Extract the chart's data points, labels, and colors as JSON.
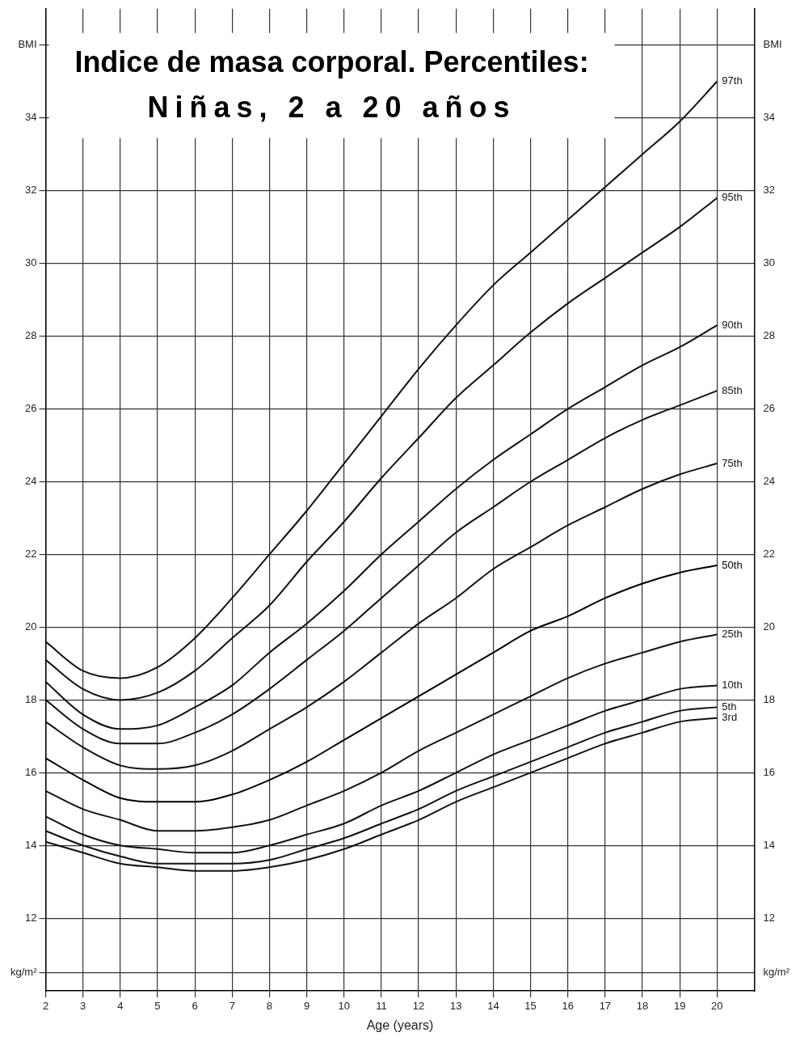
{
  "chart_data": {
    "type": "line",
    "title": "Indice de masa corporal. Percentiles:",
    "subtitle": "Niñas, 2 a 20 años",
    "xlabel": "Age (years)",
    "x": [
      2,
      3,
      4,
      5,
      6,
      7,
      8,
      9,
      10,
      11,
      12,
      13,
      14,
      15,
      16,
      17,
      18,
      19,
      20
    ],
    "series": [
      {
        "name": "97th",
        "color": "#111111",
        "values": [
          19.6,
          18.8,
          18.6,
          18.9,
          19.7,
          20.8,
          22.0,
          23.2,
          24.5,
          25.8,
          27.1,
          28.3,
          29.4,
          30.3,
          31.2,
          32.1,
          33.0,
          33.9,
          35.0
        ]
      },
      {
        "name": "95th",
        "color": "#111111",
        "values": [
          19.1,
          18.3,
          18.0,
          18.2,
          18.8,
          19.7,
          20.6,
          21.8,
          22.9,
          24.1,
          25.2,
          26.3,
          27.2,
          28.1,
          28.9,
          29.6,
          30.3,
          31.0,
          31.8
        ]
      },
      {
        "name": "90th",
        "color": "#111111",
        "values": [
          18.5,
          17.6,
          17.2,
          17.3,
          17.8,
          18.4,
          19.3,
          20.1,
          21.0,
          22.0,
          22.9,
          23.8,
          24.6,
          25.3,
          26.0,
          26.6,
          27.2,
          27.7,
          28.3
        ]
      },
      {
        "name": "85th",
        "color": "#111111",
        "values": [
          18.0,
          17.2,
          16.8,
          16.8,
          17.1,
          17.6,
          18.3,
          19.1,
          19.9,
          20.8,
          21.7,
          22.6,
          23.3,
          24.0,
          24.6,
          25.2,
          25.7,
          26.1,
          26.5
        ]
      },
      {
        "name": "75th",
        "color": "#111111",
        "values": [
          17.4,
          16.7,
          16.2,
          16.1,
          16.2,
          16.6,
          17.2,
          17.8,
          18.5,
          19.3,
          20.1,
          20.8,
          21.6,
          22.2,
          22.8,
          23.3,
          23.8,
          24.2,
          24.5
        ]
      },
      {
        "name": "50th",
        "color": "#000000",
        "values": [
          16.4,
          15.8,
          15.3,
          15.2,
          15.2,
          15.4,
          15.8,
          16.3,
          16.9,
          17.5,
          18.1,
          18.7,
          19.3,
          19.9,
          20.3,
          20.8,
          21.2,
          21.5,
          21.7
        ]
      },
      {
        "name": "25th",
        "color": "#111111",
        "values": [
          15.5,
          15.0,
          14.7,
          14.4,
          14.4,
          14.5,
          14.7,
          15.1,
          15.5,
          16.0,
          16.6,
          17.1,
          17.6,
          18.1,
          18.6,
          19.0,
          19.3,
          19.6,
          19.8
        ]
      },
      {
        "name": "10th",
        "color": "#111111",
        "values": [
          14.8,
          14.3,
          14.0,
          13.9,
          13.8,
          13.8,
          14.0,
          14.3,
          14.6,
          15.1,
          15.5,
          16.0,
          16.5,
          16.9,
          17.3,
          17.7,
          18.0,
          18.3,
          18.4
        ]
      },
      {
        "name": "5th",
        "color": "#111111",
        "values": [
          14.4,
          14.0,
          13.7,
          13.5,
          13.5,
          13.5,
          13.6,
          13.9,
          14.2,
          14.6,
          15.0,
          15.5,
          15.9,
          16.3,
          16.7,
          17.1,
          17.4,
          17.7,
          17.8
        ]
      },
      {
        "name": "3rd",
        "color": "#111111",
        "values": [
          14.1,
          13.8,
          13.5,
          13.4,
          13.3,
          13.3,
          13.4,
          13.6,
          13.9,
          14.3,
          14.7,
          15.2,
          15.6,
          16.0,
          16.4,
          16.8,
          17.1,
          17.4,
          17.5
        ]
      }
    ],
    "xlim": [
      2,
      21
    ],
    "xticks": [
      2,
      3,
      4,
      5,
      6,
      7,
      8,
      9,
      10,
      11,
      12,
      13,
      14,
      15,
      16,
      17,
      18,
      19,
      20
    ],
    "ylim": [
      10,
      37
    ],
    "yticks": [
      {
        "value": 10.5,
        "label": "kg/m²"
      },
      12,
      14,
      16,
      18,
      20,
      22,
      24,
      26,
      28,
      30,
      32,
      34,
      {
        "value": 36,
        "label": "BMI"
      }
    ],
    "y2lim": [
      10,
      37
    ],
    "y2ticks": [
      {
        "value": 10.5,
        "label": "kg/m²"
      },
      12,
      14,
      16,
      18,
      20,
      22,
      24,
      26,
      28,
      30,
      32,
      34,
      {
        "value": 36,
        "label": "BMI"
      }
    ],
    "grid": true,
    "legend": false,
    "marker": "none",
    "line_style": "solid"
  }
}
